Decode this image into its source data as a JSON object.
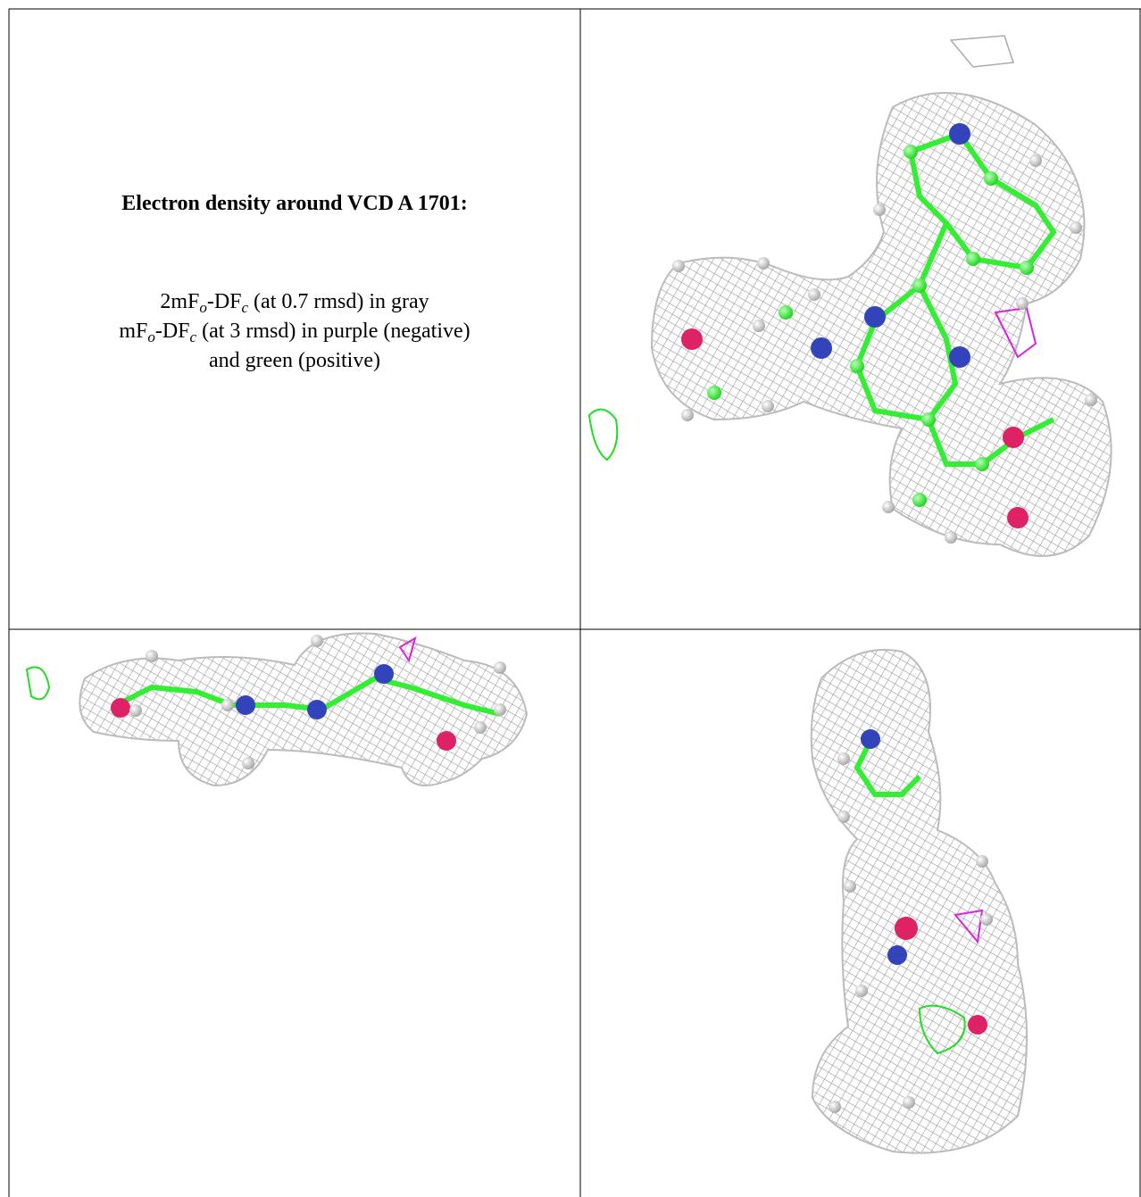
{
  "header": {
    "title": "Electron density around VCD A 1701:"
  },
  "legend": {
    "lines": [
      [
        "2mF",
        "o",
        "-DF",
        "c",
        " (at 0.7 rmsd) in gray"
      ],
      [
        "mF",
        "o",
        "-DF",
        "c",
        " (at 3 rmsd) in purple (negative)"
      ],
      [
        "and green (positive)"
      ]
    ]
  }
}
